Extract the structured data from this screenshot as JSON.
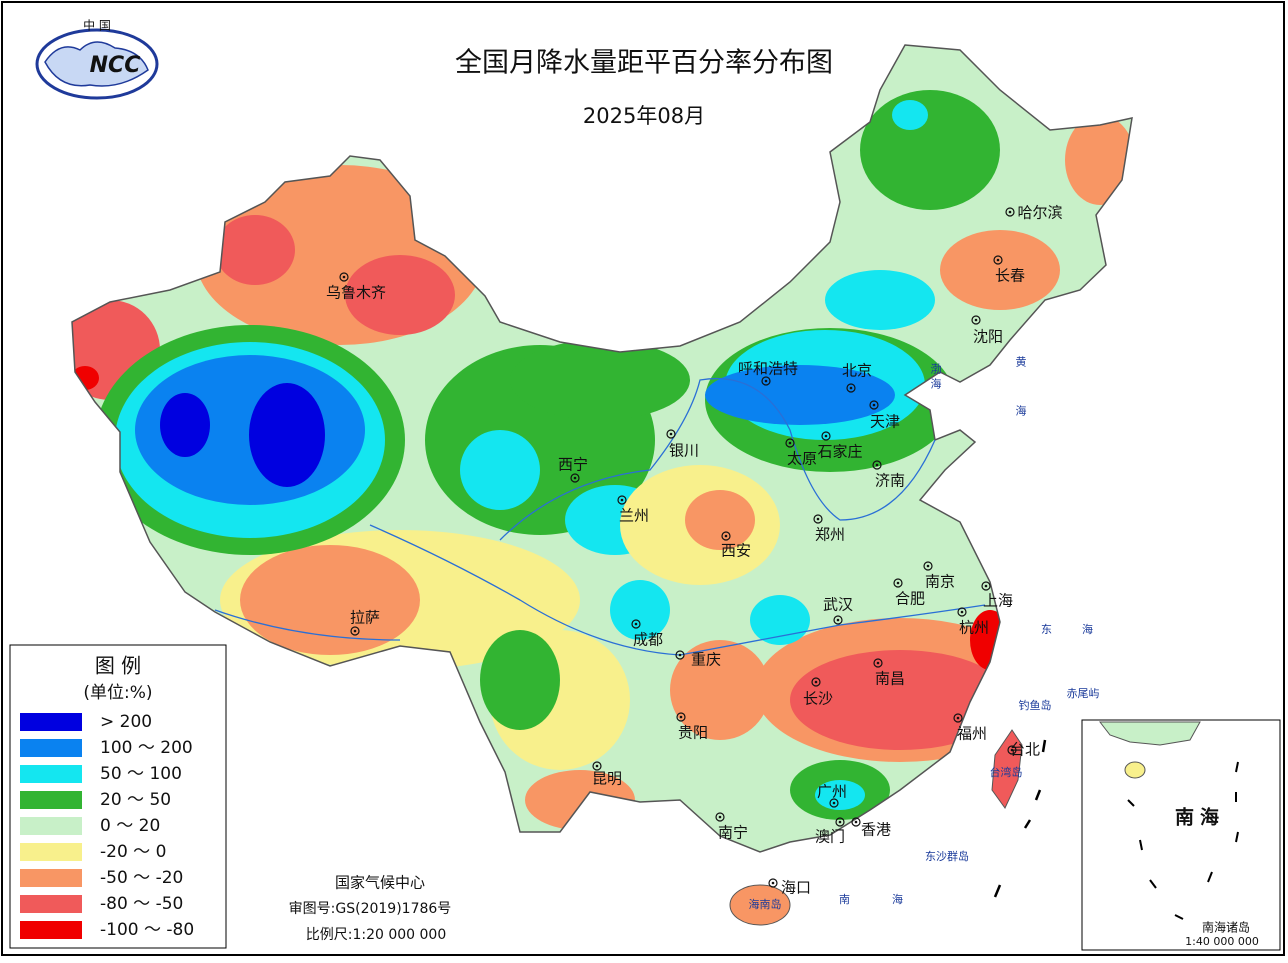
{
  "header": {
    "title": "全国月降水量距平百分率分布图",
    "subtitle": "2025年08月"
  },
  "logo": {
    "top": "中 国",
    "text": "NCC"
  },
  "legend": {
    "title": "图 例",
    "unit": "(单位:%)",
    "items": [
      {
        "label": "> 200",
        "color": "#0000e0"
      },
      {
        "label": "100 ～ 200",
        "color": "#0a82f0"
      },
      {
        "label": "50 ～ 100",
        "color": "#14e6f0"
      },
      {
        "label": "20 ～ 50",
        "color": "#32b432"
      },
      {
        "label": "0 ～ 20",
        "color": "#c8f0c8"
      },
      {
        "label": "-20 ～ 0",
        "color": "#f8f08c"
      },
      {
        "label": "-50 ～ -20",
        "color": "#f89664"
      },
      {
        "label": "-80 ～ -50",
        "color": "#f05a5a"
      },
      {
        "label": "-100 ～ -80",
        "color": "#f00000"
      }
    ]
  },
  "cities": [
    "乌鲁木齐",
    "哈尔滨",
    "长春",
    "沈阳",
    "呼和浩特",
    "北京",
    "天津",
    "太原",
    "石家庄",
    "济南",
    "银川",
    "西宁",
    "兰州",
    "郑州",
    "西安",
    "南京",
    "合肥",
    "上海",
    "拉萨",
    "武汉",
    "杭州",
    "成都",
    "重庆",
    "长沙",
    "南昌",
    "贵阳",
    "福州",
    "台北",
    "昆明",
    "广州",
    "南宁",
    "澳门",
    "香港",
    "海口"
  ],
  "sea_labels": [
    "渤海",
    "黄海",
    "东海",
    "南海",
    "钓鱼岛",
    "赤尾屿",
    "东沙群岛",
    "台湾岛",
    "海南岛"
  ],
  "footer": {
    "agency": "国家气候中心",
    "approval": "审图号:GS(2019)1786号",
    "scale": "比例尺:1:20 000 000"
  },
  "inset": {
    "title": "南海",
    "caption": "南海诸岛",
    "scale": "1:40 000 000"
  }
}
